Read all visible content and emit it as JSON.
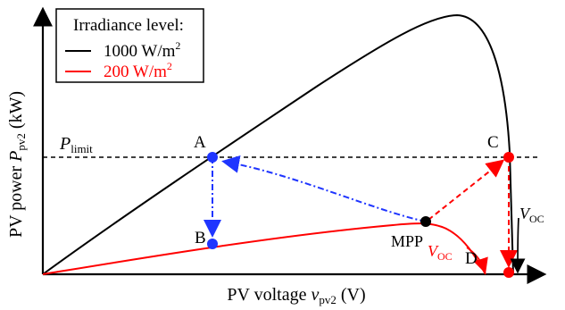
{
  "legend": {
    "title": "Irradiance level:",
    "items": [
      {
        "label": "1000 W/m",
        "superscript": "2",
        "color": "#000000"
      },
      {
        "label": "200 W/m",
        "superscript": "2",
        "color": "#ff0000"
      }
    ]
  },
  "axes": {
    "ylabel_prefix": "PV power ",
    "ylabel_symbol": "P",
    "ylabel_subscript": "pv2",
    "ylabel_unit": " (kW)",
    "xlabel_prefix": "PV voltage ",
    "xlabel_symbol": "v",
    "xlabel_subscript": "pv2",
    "xlabel_unit": " (V)"
  },
  "annotations": {
    "plimit_symbol": "P",
    "plimit_subscript": "limit",
    "point_A": "A",
    "point_B": "B",
    "point_C": "C",
    "point_D": "D",
    "mpp": "MPP",
    "voc_symbol": "V",
    "voc_subscript": "OC"
  },
  "colors": {
    "black_curve": "#000000",
    "red_curve": "#ff0000",
    "blue_arrow": "#1f35ff",
    "point_blue": "#1f35ff",
    "point_red": "#ff0000",
    "point_black": "#000000"
  }
}
